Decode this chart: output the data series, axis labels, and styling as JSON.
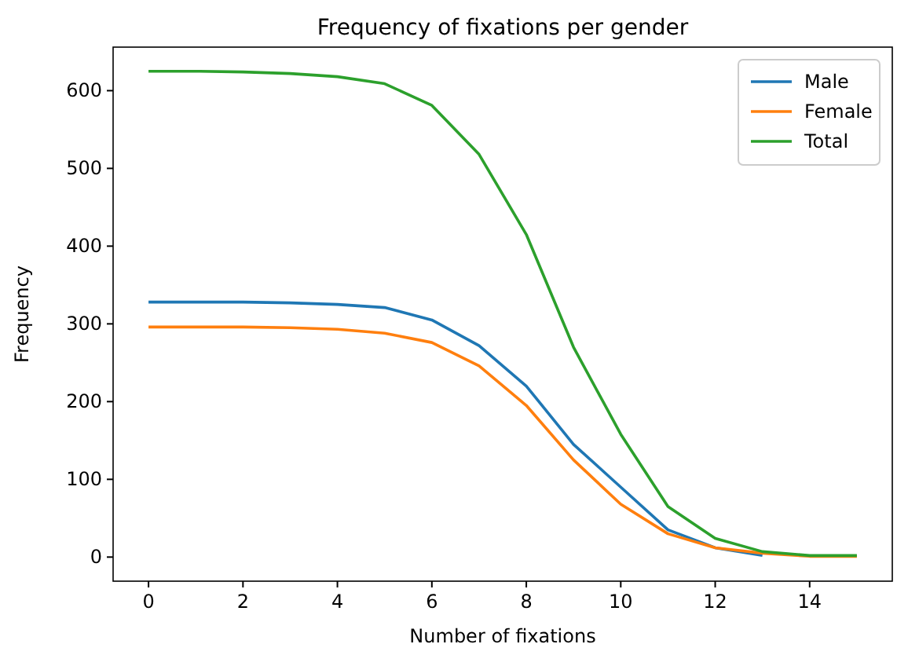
{
  "chart_data": {
    "type": "line",
    "title": "Frequency of fixations per gender",
    "xlabel": "Number of fixations",
    "ylabel": "Frequency",
    "xlim": [
      -0.75,
      15.75
    ],
    "ylim": [
      -31,
      656
    ],
    "xticks": [
      0,
      2,
      4,
      6,
      8,
      10,
      12,
      14
    ],
    "yticks": [
      0,
      100,
      200,
      300,
      400,
      500,
      600
    ],
    "grid": false,
    "legend": "top right",
    "series": [
      {
        "name": "Male",
        "color": "#1f77b4",
        "x": [
          0,
          1,
          2,
          3,
          4,
          5,
          6,
          7,
          8,
          9,
          10,
          11,
          12,
          13
        ],
        "values": [
          328,
          328,
          328,
          327,
          325,
          321,
          305,
          272,
          220,
          145,
          90,
          35,
          12,
          2
        ]
      },
      {
        "name": "Female",
        "color": "#ff7f0e",
        "x": [
          0,
          1,
          2,
          3,
          4,
          5,
          6,
          7,
          8,
          9,
          10,
          11,
          12,
          13,
          14,
          15
        ],
        "values": [
          296,
          296,
          296,
          295,
          293,
          288,
          276,
          246,
          195,
          125,
          68,
          30,
          12,
          5,
          1,
          1
        ]
      },
      {
        "name": "Total",
        "color": "#2ca02c",
        "x": [
          0,
          1,
          2,
          3,
          4,
          5,
          6,
          7,
          8,
          9,
          10,
          11,
          12,
          13,
          14,
          15
        ],
        "values": [
          625,
          625,
          624,
          622,
          618,
          609,
          581,
          518,
          415,
          270,
          158,
          65,
          24,
          7,
          2,
          2
        ]
      }
    ]
  }
}
